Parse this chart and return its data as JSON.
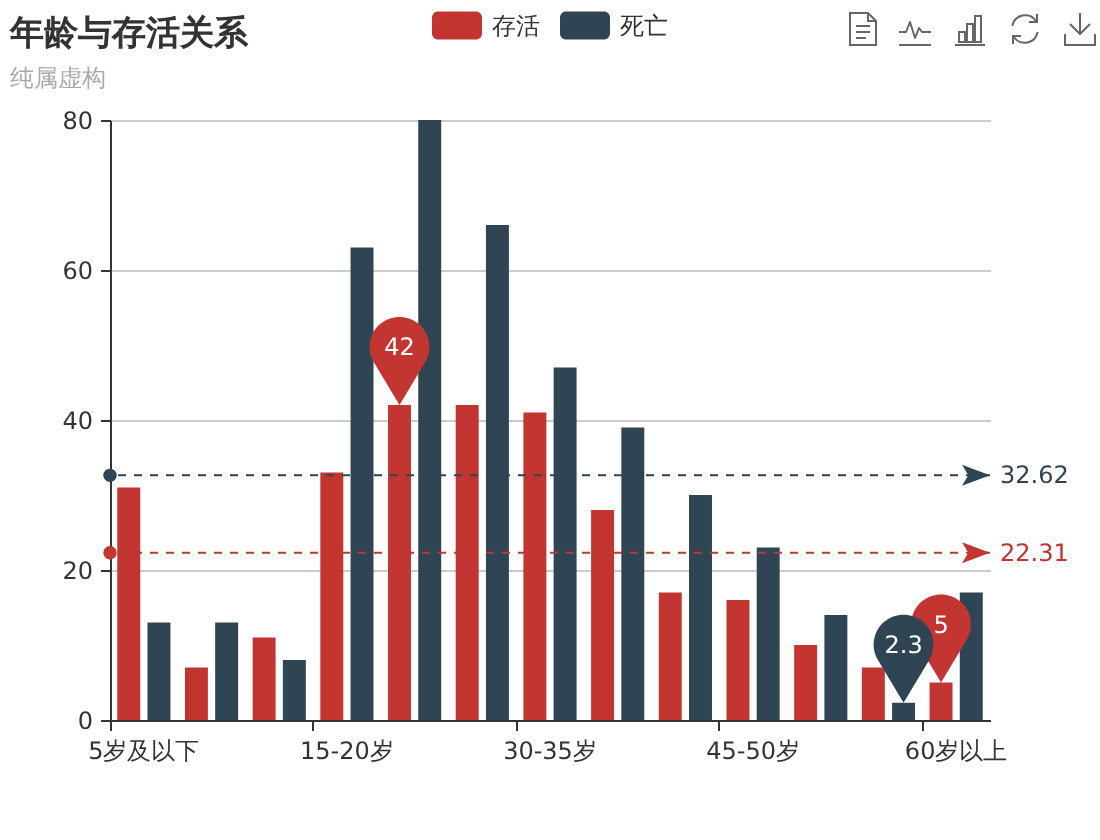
{
  "chart_data": {
    "type": "bar",
    "title": "年龄与存活关系",
    "subtitle": "纯属虚构",
    "categories": [
      "5岁及以下",
      null,
      null,
      "15-20岁",
      null,
      null,
      "30-35岁",
      null,
      null,
      "45-50岁",
      null,
      null,
      "60岁以上"
    ],
    "series": [
      {
        "name": "存活",
        "color": "#c23531",
        "values": [
          31,
          7,
          11,
          33,
          42,
          42,
          41,
          28,
          17,
          16,
          10,
          7,
          5
        ],
        "value_labels": [
          null,
          null,
          null,
          null,
          "42",
          null,
          null,
          null,
          null,
          null,
          null,
          null,
          "5"
        ]
      },
      {
        "name": "死亡",
        "color": "#2f4554",
        "values": [
          13,
          13,
          8,
          63,
          80,
          66,
          47,
          39,
          30,
          23,
          14,
          2.3,
          17
        ],
        "value_labels": [
          null,
          null,
          null,
          null,
          null,
          null,
          null,
          null,
          null,
          null,
          null,
          "2.3",
          null
        ]
      }
    ],
    "ylim": [
      0,
      80
    ],
    "yticks": [
      0,
      20,
      40,
      60,
      80
    ],
    "grid": "y",
    "legend": "top",
    "ref_lines": [
      {
        "axis": "y",
        "value": 32.62,
        "label": "32.62",
        "color": "#2f4554",
        "line_style": "dashed"
      },
      {
        "axis": "y",
        "value": 22.31,
        "label": "22.31",
        "color": "#c23531",
        "line_style": "dashed"
      }
    ]
  }
}
